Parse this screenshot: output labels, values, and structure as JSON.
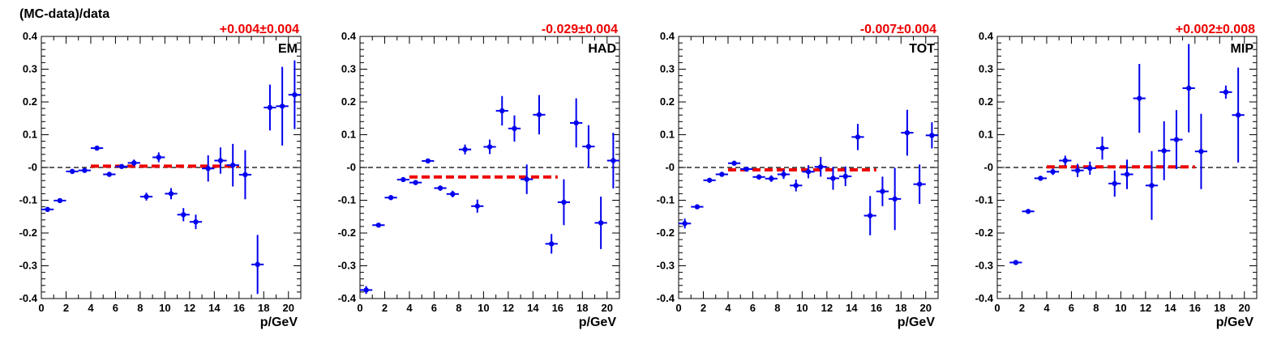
{
  "figure": {
    "ylabel": "(MC-data)/data",
    "colors": {
      "points": "#0000ee",
      "fit": "#ee0000",
      "offset_text": "#ee0000",
      "axis": "#000000"
    }
  },
  "chart_data": [
    {
      "type": "scatter",
      "title": "EM",
      "offset_label": "+0.004±0.004",
      "fit_value": 0.004,
      "fit_range": [
        4,
        16
      ],
      "xlabel": "p/GeV",
      "ylabel": "(MC-data)/data",
      "xlim": [
        0,
        21
      ],
      "ylim": [
        -0.4,
        0.4
      ],
      "xticks": [
        "0",
        "2",
        "4",
        "6",
        "8",
        "10",
        "12",
        "14",
        "16",
        "18",
        "20"
      ],
      "yticks": [
        "-0.4",
        "-0.3",
        "-0.2",
        "-0.1",
        "-0",
        "0.1",
        "0.2",
        "0.3",
        "0.4"
      ],
      "points": [
        {
          "x": 0.5,
          "y": -0.128,
          "yerr": 0.006
        },
        {
          "x": 1.5,
          "y": -0.101,
          "yerr": 0.005
        },
        {
          "x": 2.5,
          "y": -0.012,
          "yerr": 0.005
        },
        {
          "x": 3.5,
          "y": -0.009,
          "yerr": 0.006
        },
        {
          "x": 4.5,
          "y": 0.059,
          "yerr": 0.006
        },
        {
          "x": 5.5,
          "y": -0.021,
          "yerr": 0.007
        },
        {
          "x": 6.5,
          "y": 0.003,
          "yerr": 0.006
        },
        {
          "x": 7.5,
          "y": 0.014,
          "yerr": 0.01
        },
        {
          "x": 8.5,
          "y": -0.089,
          "yerr": 0.012
        },
        {
          "x": 9.5,
          "y": 0.031,
          "yerr": 0.015
        },
        {
          "x": 10.5,
          "y": -0.08,
          "yerr": 0.017
        },
        {
          "x": 11.5,
          "y": -0.144,
          "yerr": 0.02
        },
        {
          "x": 12.5,
          "y": -0.166,
          "yerr": 0.022
        },
        {
          "x": 13.5,
          "y": -0.003,
          "yerr": 0.04
        },
        {
          "x": 14.5,
          "y": 0.021,
          "yerr": 0.04
        },
        {
          "x": 15.5,
          "y": 0.007,
          "yerr": 0.065
        },
        {
          "x": 16.5,
          "y": -0.022,
          "yerr": 0.075
        },
        {
          "x": 17.5,
          "y": -0.296,
          "yerr": 0.09
        },
        {
          "x": 18.5,
          "y": 0.183,
          "yerr": 0.07
        },
        {
          "x": 19.5,
          "y": 0.187,
          "yerr": 0.12
        },
        {
          "x": 20.5,
          "y": 0.222,
          "yerr": 0.105
        }
      ]
    },
    {
      "type": "scatter",
      "title": "HAD",
      "offset_label": "-0.029±0.004",
      "fit_value": -0.029,
      "fit_range": [
        4,
        16
      ],
      "xlabel": "p/GeV",
      "ylabel": "",
      "xlim": [
        0,
        21
      ],
      "ylim": [
        -0.4,
        0.4
      ],
      "xticks": [
        "0",
        "2",
        "4",
        "6",
        "8",
        "10",
        "12",
        "14",
        "16",
        "18",
        "20"
      ],
      "yticks": [
        "-0.4",
        "-0.3",
        "-0.2",
        "-0.1",
        "-0",
        "0.1",
        "0.2",
        "0.3",
        "0.4"
      ],
      "points": [
        {
          "x": 0.5,
          "y": -0.374,
          "yerr": 0.012
        },
        {
          "x": 1.5,
          "y": -0.176,
          "yerr": 0.005
        },
        {
          "x": 2.5,
          "y": -0.092,
          "yerr": 0.005
        },
        {
          "x": 3.5,
          "y": -0.037,
          "yerr": 0.005
        },
        {
          "x": 4.5,
          "y": -0.046,
          "yerr": 0.006
        },
        {
          "x": 5.5,
          "y": 0.02,
          "yerr": 0.007
        },
        {
          "x": 6.5,
          "y": -0.063,
          "yerr": 0.008
        },
        {
          "x": 7.5,
          "y": -0.081,
          "yerr": 0.01
        },
        {
          "x": 8.5,
          "y": 0.055,
          "yerr": 0.015
        },
        {
          "x": 9.5,
          "y": -0.118,
          "yerr": 0.02
        },
        {
          "x": 10.5,
          "y": 0.063,
          "yerr": 0.022
        },
        {
          "x": 11.5,
          "y": 0.173,
          "yerr": 0.045
        },
        {
          "x": 12.5,
          "y": 0.119,
          "yerr": 0.04
        },
        {
          "x": 13.5,
          "y": -0.036,
          "yerr": 0.045
        },
        {
          "x": 14.5,
          "y": 0.161,
          "yerr": 0.06
        },
        {
          "x": 15.5,
          "y": -0.233,
          "yerr": 0.03
        },
        {
          "x": 16.5,
          "y": -0.106,
          "yerr": 0.07
        },
        {
          "x": 17.5,
          "y": 0.136,
          "yerr": 0.075
        },
        {
          "x": 18.5,
          "y": 0.064,
          "yerr": 0.065
        },
        {
          "x": 19.5,
          "y": -0.169,
          "yerr": 0.08
        },
        {
          "x": 20.5,
          "y": 0.021,
          "yerr": 0.085
        }
      ]
    },
    {
      "type": "scatter",
      "title": "TOT",
      "offset_label": "-0.007±0.004",
      "fit_value": -0.007,
      "fit_range": [
        4,
        16
      ],
      "xlabel": "p/GeV",
      "ylabel": "",
      "xlim": [
        0,
        21
      ],
      "ylim": [
        -0.4,
        0.4
      ],
      "xticks": [
        "0",
        "2",
        "4",
        "6",
        "8",
        "10",
        "12",
        "14",
        "16",
        "18",
        "20"
      ],
      "yticks": [
        "-0.4",
        "-0.3",
        "-0.2",
        "-0.1",
        "-0",
        "0.1",
        "0.2",
        "0.3",
        "0.4"
      ],
      "points": [
        {
          "x": 0.5,
          "y": -0.171,
          "yerr": 0.015
        },
        {
          "x": 1.5,
          "y": -0.12,
          "yerr": 0.006
        },
        {
          "x": 2.5,
          "y": -0.039,
          "yerr": 0.004
        },
        {
          "x": 3.5,
          "y": -0.021,
          "yerr": 0.004
        },
        {
          "x": 4.5,
          "y": 0.013,
          "yerr": 0.005
        },
        {
          "x": 5.5,
          "y": -0.005,
          "yerr": 0.006
        },
        {
          "x": 6.5,
          "y": -0.029,
          "yerr": 0.008
        },
        {
          "x": 7.5,
          "y": -0.034,
          "yerr": 0.01
        },
        {
          "x": 8.5,
          "y": -0.021,
          "yerr": 0.014
        },
        {
          "x": 9.5,
          "y": -0.055,
          "yerr": 0.018
        },
        {
          "x": 10.5,
          "y": -0.013,
          "yerr": 0.02
        },
        {
          "x": 11.5,
          "y": 0.002,
          "yerr": 0.03
        },
        {
          "x": 12.5,
          "y": -0.033,
          "yerr": 0.035
        },
        {
          "x": 13.5,
          "y": -0.027,
          "yerr": 0.03
        },
        {
          "x": 14.5,
          "y": 0.093,
          "yerr": 0.04
        },
        {
          "x": 15.5,
          "y": -0.147,
          "yerr": 0.06
        },
        {
          "x": 16.5,
          "y": -0.073,
          "yerr": 0.045
        },
        {
          "x": 17.5,
          "y": -0.096,
          "yerr": 0.095
        },
        {
          "x": 18.5,
          "y": 0.106,
          "yerr": 0.07
        },
        {
          "x": 19.5,
          "y": -0.051,
          "yerr": 0.06
        },
        {
          "x": 20.5,
          "y": 0.098,
          "yerr": 0.04
        }
      ]
    },
    {
      "type": "scatter",
      "title": "MIP",
      "offset_label": "+0.002±0.008",
      "fit_value": 0.002,
      "fit_range": [
        4,
        16
      ],
      "xlabel": "p/GeV",
      "ylabel": "",
      "xlim": [
        0,
        21
      ],
      "ylim": [
        -0.4,
        0.4
      ],
      "xticks": [
        "0",
        "2",
        "4",
        "6",
        "8",
        "10",
        "12",
        "14",
        "16",
        "18",
        "20"
      ],
      "yticks": [
        "-0.4",
        "-0.3",
        "-0.2",
        "-0.1",
        "-0",
        "0.1",
        "0.2",
        "0.3",
        "0.4"
      ],
      "points": [
        {
          "x": 1.5,
          "y": -0.29,
          "yerr": 0.005
        },
        {
          "x": 2.5,
          "y": -0.134,
          "yerr": 0.006
        },
        {
          "x": 3.5,
          "y": -0.033,
          "yerr": 0.006
        },
        {
          "x": 4.5,
          "y": -0.013,
          "yerr": 0.01
        },
        {
          "x": 5.5,
          "y": 0.021,
          "yerr": 0.015
        },
        {
          "x": 6.5,
          "y": -0.009,
          "yerr": 0.02
        },
        {
          "x": 7.5,
          "y": -0.002,
          "yerr": 0.02
        },
        {
          "x": 8.5,
          "y": 0.059,
          "yerr": 0.035
        },
        {
          "x": 9.5,
          "y": -0.049,
          "yerr": 0.04
        },
        {
          "x": 10.5,
          "y": -0.021,
          "yerr": 0.045
        },
        {
          "x": 11.5,
          "y": 0.211,
          "yerr": 0.105
        },
        {
          "x": 12.5,
          "y": -0.055,
          "yerr": 0.105
        },
        {
          "x": 13.5,
          "y": 0.051,
          "yerr": 0.09
        },
        {
          "x": 14.5,
          "y": 0.085,
          "yerr": 0.09
        },
        {
          "x": 15.5,
          "y": 0.242,
          "yerr": 0.135
        },
        {
          "x": 16.5,
          "y": 0.049,
          "yerr": 0.115
        },
        {
          "x": 18.5,
          "y": 0.23,
          "yerr": 0.02
        },
        {
          "x": 19.5,
          "y": 0.16,
          "yerr": 0.145
        }
      ]
    }
  ]
}
